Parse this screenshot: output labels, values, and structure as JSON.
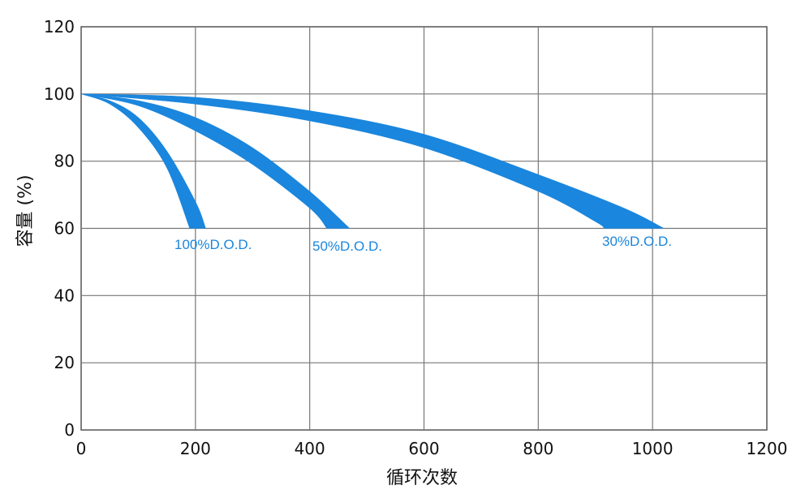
{
  "chart_data": {
    "type": "area",
    "xlabel": "循环次数",
    "ylabel": "容量 (%)",
    "xlim": [
      0,
      1200
    ],
    "ylim": [
      0,
      120
    ],
    "x_ticks": [
      "0",
      "200",
      "400",
      "600",
      "800",
      "1000",
      "1200"
    ],
    "y_ticks": [
      "0",
      "20",
      "40",
      "60",
      "80",
      "100",
      "120"
    ],
    "grid": true,
    "band_color": "#1a86dd",
    "series": [
      {
        "label": "100%D.O.D.",
        "upper": [
          [
            0,
            100
          ],
          [
            50,
            98
          ],
          [
            100,
            93
          ],
          [
            150,
            83
          ],
          [
            200,
            68
          ],
          [
            218,
            60
          ]
        ],
        "lower": [
          [
            0,
            100
          ],
          [
            50,
            97
          ],
          [
            100,
            90
          ],
          [
            150,
            78
          ],
          [
            190,
            60
          ]
        ]
      },
      {
        "label": "50%D.O.D.",
        "upper": [
          [
            0,
            100
          ],
          [
            100,
            98
          ],
          [
            200,
            93
          ],
          [
            300,
            84
          ],
          [
            400,
            71
          ],
          [
            470,
            60
          ]
        ],
        "lower": [
          [
            0,
            100
          ],
          [
            100,
            96.5
          ],
          [
            200,
            89
          ],
          [
            300,
            79
          ],
          [
            400,
            66
          ],
          [
            430,
            60
          ]
        ]
      },
      {
        "label": "30%D.O.D.",
        "upper": [
          [
            0,
            100
          ],
          [
            200,
            99
          ],
          [
            400,
            95
          ],
          [
            600,
            88
          ],
          [
            800,
            76
          ],
          [
            950,
            66
          ],
          [
            1020,
            60
          ]
        ],
        "lower": [
          [
            0,
            100
          ],
          [
            200,
            97
          ],
          [
            400,
            92
          ],
          [
            600,
            84
          ],
          [
            800,
            71
          ],
          [
            900,
            62
          ],
          [
            915,
            60
          ]
        ]
      }
    ]
  }
}
